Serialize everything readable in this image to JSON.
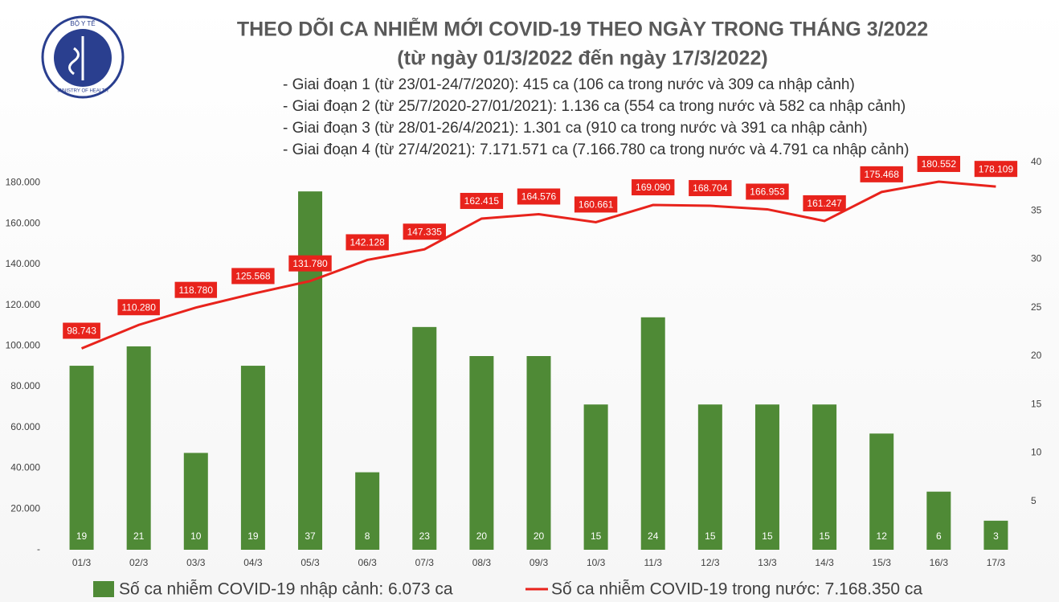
{
  "chart_data": {
    "type": "bar_line",
    "title": "THEO DÕI CA NHIỄM MỚI COVID-19 THEO NGÀY TRONG THÁNG 3/2022",
    "subtitle": "(từ ngày 01/3/2022 đến ngày 17/3/2022)",
    "notes": [
      "- Giai đoạn 1 (từ 23/01-24/7/2020): 415 ca (106 ca trong nước và 309 ca nhập cảnh)",
      "- Giai đoạn 2 (từ 25/7/2020-27/01/2021): 1.136 ca (554 ca trong nước và 582 ca nhập cảnh)",
      "- Giai đoạn 3 (từ 28/01-26/4/2021): 1.301 ca (910 ca trong nước và 391 ca nhập cảnh)",
      "- Giai đoạn 4 (từ 27/4/2021): 7.171.571 ca (7.166.780 ca trong nước và 4.791 ca nhập cảnh)"
    ],
    "logo": {
      "top": "BỘ Y TẾ",
      "bottom": "MINISTRY OF HEALTH"
    },
    "categories": [
      "01/3",
      "02/3",
      "03/3",
      "04/3",
      "05/3",
      "06/3",
      "07/3",
      "08/3",
      "09/3",
      "10/3",
      "11/3",
      "12/3",
      "13/3",
      "14/3",
      "15/3",
      "16/3",
      "17/3"
    ],
    "series": [
      {
        "name": "Số ca nhiễm COVID-19 nhập cảnh: 6.073 ca",
        "kind": "bar",
        "axis": "y2",
        "color": "#4f8a36",
        "values": [
          19,
          21,
          10,
          19,
          37,
          8,
          23,
          20,
          20,
          15,
          24,
          15,
          15,
          15,
          12,
          6,
          3
        ]
      },
      {
        "name": "Số ca nhiễm COVID-19 trong nước: 7.168.350 ca",
        "kind": "line",
        "color": "#e8231c",
        "values": [
          98743,
          110280,
          118780,
          125568,
          131780,
          142128,
          147335,
          162415,
          164576,
          160661,
          169090,
          168704,
          166953,
          161247,
          175468,
          180552,
          178109
        ],
        "value_labels": [
          "98.743",
          "110.280",
          "118.780",
          "125.568",
          "131.780",
          "142.128",
          "147.335",
          "162.415",
          "164.576",
          "160.661",
          "169.090",
          "168.704",
          "166.953",
          "161.247",
          "175.468",
          "180.552",
          "178.109"
        ]
      }
    ],
    "ylim": [
      0,
      190000
    ],
    "yticks": [
      {
        "value": 0,
        "label": "-"
      },
      {
        "value": 20000,
        "label": "20.000"
      },
      {
        "value": 40000,
        "label": "40.000"
      },
      {
        "value": 60000,
        "label": "60.000"
      },
      {
        "value": 80000,
        "label": "80.000"
      },
      {
        "value": 100000,
        "label": "100.000"
      },
      {
        "value": 120000,
        "label": "120.000"
      },
      {
        "value": 140000,
        "label": "140.000"
      },
      {
        "value": 160000,
        "label": "160.000"
      },
      {
        "value": 180000,
        "label": "180.000"
      }
    ],
    "y2lim": [
      0,
      40
    ],
    "y2ticks": [
      5,
      10,
      15,
      20,
      25,
      30,
      35,
      40
    ]
  }
}
